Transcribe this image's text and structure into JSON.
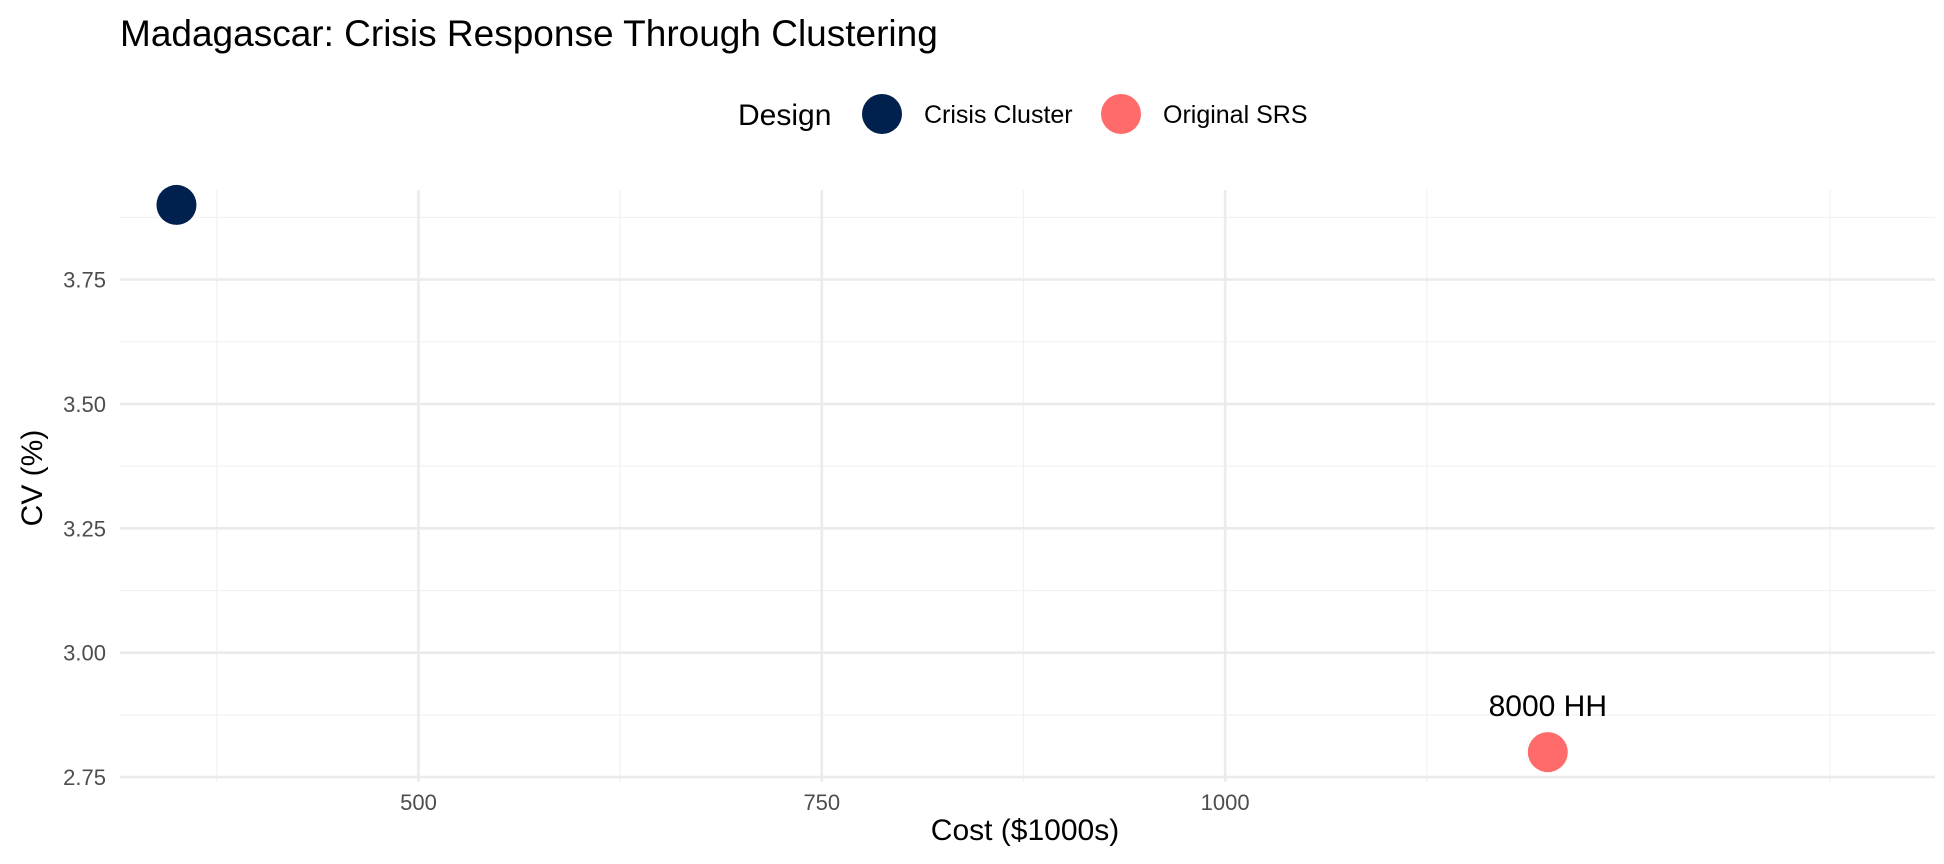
{
  "chart_data": {
    "type": "scatter",
    "title": "Madagascar: Crisis Response Through Clustering",
    "xlabel": "Cost ($1000s)",
    "ylabel": "CV (%)",
    "xlim": [
      315,
      1440
    ],
    "ylim": [
      2.74,
      3.93
    ],
    "x_ticks": [
      500,
      750,
      1000
    ],
    "x_tick_labels": [
      "500",
      "750",
      "1000"
    ],
    "x_minor_ticks": [
      375,
      625,
      875,
      1125,
      1375
    ],
    "y_ticks": [
      2.75,
      3.0,
      3.25,
      3.5,
      3.75
    ],
    "y_tick_labels": [
      "2.75",
      "3.00",
      "3.25",
      "3.50",
      "3.75"
    ],
    "y_minor_ticks": [
      2.875,
      3.125,
      3.375,
      3.625,
      3.875
    ],
    "grid": true,
    "legend": {
      "title": "Design",
      "position": "top",
      "entries": [
        "Crisis Cluster",
        "Original SRS"
      ]
    },
    "series": [
      {
        "name": "Crisis Cluster",
        "color": "#00204D",
        "points": [
          {
            "x": 350,
            "y": 3.9,
            "label": ""
          }
        ]
      },
      {
        "name": "Original SRS",
        "color": "#FF6B6B",
        "points": [
          {
            "x": 1200,
            "y": 2.8,
            "label": "8000 HH"
          }
        ]
      }
    ]
  }
}
